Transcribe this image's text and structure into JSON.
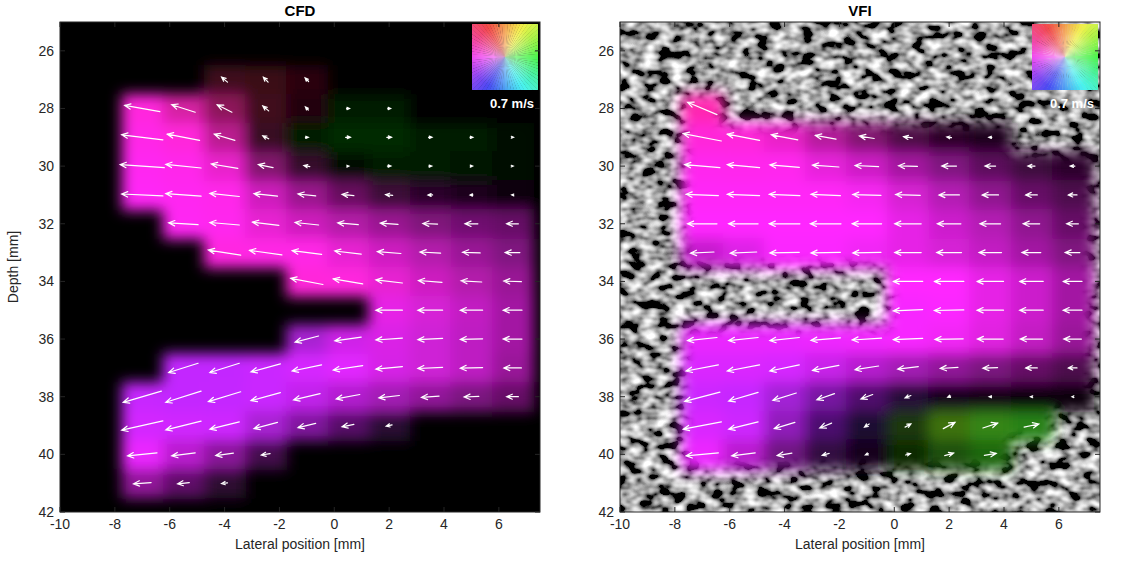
{
  "chart_data": [
    {
      "type": "vector_field",
      "title": "CFD",
      "x_label": "Lateral position [mm]",
      "y_label": "Depth [mm]",
      "xlim": [
        -10,
        7.5
      ],
      "ylim": [
        25,
        42
      ],
      "xticks": [
        -10,
        -8,
        -6,
        -4,
        -2,
        0,
        2,
        4,
        6
      ],
      "yticks": [
        26,
        28,
        30,
        32,
        34,
        36,
        38,
        40,
        42
      ],
      "color_scale": {
        "value": 0.7,
        "label": "0.7 m/s"
      },
      "x": [
        -7,
        -5.5,
        -4,
        -2.5,
        -1,
        0.5,
        2,
        3.5,
        5,
        6.5
      ],
      "depth": [
        27,
        28,
        29,
        30,
        31,
        32,
        33,
        34,
        35,
        36,
        37,
        38,
        39,
        40,
        41
      ],
      "u": [
        [
          null,
          null,
          -0.1,
          -0.08,
          -0.06,
          null,
          null,
          null,
          null,
          null
        ],
        [
          -0.6,
          -0.4,
          -0.25,
          -0.1,
          -0.05,
          0.05,
          0.05,
          null,
          null,
          null
        ],
        [
          -0.7,
          -0.55,
          -0.35,
          -0.1,
          0.05,
          0.08,
          0.08,
          0.06,
          0.05,
          0.03
        ],
        [
          -0.75,
          -0.6,
          -0.45,
          -0.25,
          -0.1,
          0.03,
          0.06,
          0.05,
          0.04,
          0.02
        ],
        [
          -0.7,
          -0.6,
          -0.5,
          -0.4,
          -0.3,
          -0.2,
          -0.12,
          -0.08,
          -0.05,
          -0.03
        ],
        [
          null,
          -0.5,
          -0.5,
          -0.45,
          -0.4,
          -0.35,
          -0.3,
          -0.25,
          -0.22,
          -0.2
        ],
        [
          null,
          null,
          -0.55,
          -0.55,
          -0.5,
          -0.45,
          -0.4,
          -0.35,
          -0.3,
          -0.25
        ],
        [
          null,
          null,
          null,
          null,
          -0.55,
          -0.5,
          -0.45,
          -0.4,
          -0.35,
          -0.3
        ],
        [
          null,
          null,
          null,
          null,
          null,
          null,
          -0.45,
          -0.42,
          -0.38,
          -0.32
        ],
        [
          null,
          null,
          null,
          null,
          -0.4,
          -0.45,
          -0.45,
          -0.42,
          -0.38,
          -0.32
        ],
        [
          null,
          -0.5,
          -0.5,
          -0.5,
          -0.5,
          -0.5,
          -0.45,
          -0.42,
          -0.38,
          -0.3
        ],
        [
          -0.65,
          -0.6,
          -0.55,
          -0.5,
          -0.45,
          -0.4,
          -0.35,
          -0.3,
          -0.25,
          -0.2
        ],
        [
          -0.7,
          -0.6,
          -0.5,
          -0.4,
          -0.3,
          -0.2,
          -0.1,
          null,
          null,
          null
        ],
        [
          -0.5,
          -0.4,
          -0.3,
          -0.15,
          null,
          null,
          null,
          null,
          null,
          null
        ],
        [
          -0.3,
          -0.2,
          -0.1,
          null,
          null,
          null,
          null,
          null,
          null,
          null
        ]
      ],
      "w": [
        [
          null,
          null,
          -0.08,
          -0.08,
          -0.06,
          null,
          null,
          null,
          null,
          null
        ],
        [
          -0.1,
          -0.12,
          -0.12,
          -0.08,
          -0.05,
          0,
          0,
          null,
          null,
          null
        ],
        [
          -0.08,
          -0.1,
          -0.1,
          -0.05,
          0,
          0,
          0,
          0,
          0,
          0
        ],
        [
          -0.05,
          -0.06,
          -0.07,
          -0.05,
          -0.02,
          0,
          0,
          0,
          0,
          0
        ],
        [
          -0.03,
          -0.04,
          -0.05,
          -0.04,
          -0.03,
          -0.02,
          -0.01,
          0,
          0,
          0
        ],
        [
          null,
          -0.03,
          -0.04,
          -0.05,
          -0.04,
          -0.03,
          -0.02,
          -0.01,
          0,
          0
        ],
        [
          null,
          null,
          -0.08,
          -0.07,
          -0.06,
          -0.05,
          -0.03,
          -0.02,
          -0.01,
          0
        ],
        [
          null,
          null,
          null,
          null,
          -0.1,
          -0.08,
          -0.05,
          -0.03,
          -0.02,
          -0.01
        ],
        [
          null,
          null,
          null,
          null,
          null,
          null,
          0,
          0,
          0,
          0
        ],
        [
          null,
          null,
          null,
          null,
          0.1,
          0.06,
          0.03,
          0.02,
          0.01,
          0
        ],
        [
          null,
          0.15,
          0.15,
          0.13,
          0.1,
          0.07,
          0.04,
          0.02,
          0.01,
          0
        ],
        [
          0.18,
          0.18,
          0.16,
          0.13,
          0.1,
          0.07,
          0.04,
          0.02,
          0.01,
          0
        ],
        [
          0.15,
          0.14,
          0.12,
          0.1,
          0.07,
          0.04,
          0.02,
          null,
          null,
          null
        ],
        [
          0.05,
          0.05,
          0.04,
          0.02,
          null,
          null,
          null,
          null,
          null,
          null
        ],
        [
          0.02,
          0.02,
          0.01,
          null,
          null,
          null,
          null,
          null,
          null,
          null
        ]
      ]
    },
    {
      "type": "vector_field",
      "title": "VFI",
      "x_label": "Lateral position [mm]",
      "xlim": [
        -10,
        7.5
      ],
      "ylim": [
        25,
        42
      ],
      "xticks": [
        -10,
        -8,
        -6,
        -4,
        -2,
        0,
        2,
        4,
        6
      ],
      "yticks": [
        26,
        28,
        30,
        32,
        34,
        36,
        38,
        40,
        42
      ],
      "color_scale": {
        "value": 0.7,
        "label": "0.7 m/s"
      },
      "x": [
        -7,
        -5.5,
        -4,
        -2.5,
        -1,
        0.5,
        2,
        3.5,
        5,
        6.5
      ],
      "depth": [
        27,
        28,
        29,
        30,
        31,
        32,
        33,
        34,
        35,
        36,
        37,
        38,
        39,
        40,
        41
      ],
      "u": [
        [
          null,
          null,
          null,
          null,
          null,
          null,
          null,
          null,
          null,
          null
        ],
        [
          -0.5,
          null,
          null,
          null,
          null,
          null,
          null,
          null,
          null,
          null
        ],
        [
          -0.65,
          -0.55,
          -0.45,
          -0.35,
          -0.25,
          -0.15,
          -0.08,
          -0.05,
          null,
          null
        ],
        [
          -0.6,
          -0.55,
          -0.5,
          -0.45,
          -0.4,
          -0.32,
          -0.25,
          -0.18,
          -0.12,
          -0.08
        ],
        [
          -0.55,
          -0.55,
          -0.52,
          -0.5,
          -0.48,
          -0.42,
          -0.35,
          -0.28,
          -0.2,
          -0.15
        ],
        [
          -0.5,
          -0.5,
          -0.52,
          -0.52,
          -0.5,
          -0.45,
          -0.4,
          -0.35,
          -0.28,
          -0.2
        ],
        [
          -0.4,
          -0.45,
          -0.5,
          -0.5,
          -0.48,
          -0.45,
          -0.42,
          -0.38,
          -0.32,
          -0.25
        ],
        [
          null,
          null,
          null,
          null,
          null,
          -0.5,
          -0.5,
          -0.45,
          -0.4,
          -0.32
        ],
        [
          null,
          null,
          null,
          null,
          null,
          -0.5,
          -0.5,
          -0.45,
          -0.4,
          -0.32
        ],
        [
          -0.5,
          -0.5,
          -0.5,
          -0.5,
          -0.5,
          -0.5,
          -0.48,
          -0.44,
          -0.38,
          -0.3
        ],
        [
          -0.55,
          -0.55,
          -0.5,
          -0.45,
          -0.4,
          -0.35,
          -0.3,
          -0.25,
          -0.2,
          -0.15
        ],
        [
          -0.6,
          -0.5,
          -0.4,
          -0.3,
          -0.2,
          -0.1,
          -0.05,
          -0.04,
          -0.03,
          -0.02
        ],
        [
          -0.65,
          -0.5,
          -0.35,
          -0.2,
          -0.08,
          0.1,
          0.2,
          0.25,
          0.25,
          null
        ],
        [
          -0.55,
          -0.4,
          -0.25,
          -0.12,
          -0.05,
          0.08,
          0.15,
          0.2,
          null,
          null
        ],
        [
          null,
          null,
          null,
          null,
          null,
          null,
          null,
          null,
          null,
          null
        ]
      ],
      "w": [
        [
          null,
          null,
          null,
          null,
          null,
          null,
          null,
          null,
          null,
          null
        ],
        [
          -0.2,
          null,
          null,
          null,
          null,
          null,
          null,
          null,
          null,
          null
        ],
        [
          -0.12,
          -0.1,
          -0.08,
          -0.06,
          -0.04,
          -0.02,
          -0.01,
          0,
          null,
          null
        ],
        [
          -0.05,
          -0.05,
          -0.04,
          -0.03,
          -0.02,
          -0.01,
          0,
          0,
          0,
          0
        ],
        [
          -0.02,
          -0.02,
          -0.02,
          -0.02,
          -0.01,
          -0.01,
          0,
          0,
          0,
          0
        ],
        [
          0,
          0,
          0,
          0,
          0,
          0,
          0,
          0,
          0,
          0
        ],
        [
          0.02,
          0.02,
          0.01,
          0.01,
          0.01,
          0,
          0,
          0,
          0,
          0
        ],
        [
          null,
          null,
          null,
          null,
          null,
          0,
          0,
          0,
          0,
          0
        ],
        [
          null,
          null,
          null,
          null,
          null,
          0.02,
          0.01,
          0,
          0,
          0
        ],
        [
          0.05,
          0.05,
          0.05,
          0.04,
          0.03,
          0.02,
          0.01,
          0,
          0,
          0
        ],
        [
          0.1,
          0.1,
          0.1,
          0.08,
          0.06,
          0.04,
          0.02,
          0.01,
          0,
          0
        ],
        [
          0.15,
          0.14,
          0.12,
          0.1,
          0.07,
          0.04,
          0.02,
          0,
          0,
          0
        ],
        [
          0.12,
          0.12,
          0.1,
          0.08,
          0.05,
          -0.05,
          -0.1,
          -0.08,
          -0.05,
          null
        ],
        [
          0.05,
          0.05,
          0.04,
          0.03,
          0.02,
          -0.02,
          -0.04,
          -0.03,
          null,
          null
        ],
        [
          null,
          null,
          null,
          null,
          null,
          null,
          null,
          null,
          null,
          null
        ]
      ]
    }
  ]
}
